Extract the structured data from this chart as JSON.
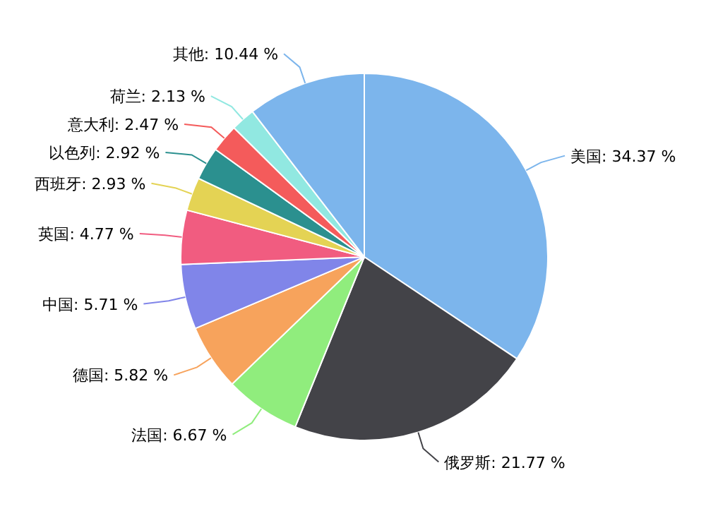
{
  "chart_data": {
    "type": "pie",
    "categories": [
      "美国",
      "俄罗斯",
      "法国",
      "德国",
      "中国",
      "英国",
      "西班牙",
      "以色列",
      "意大利",
      "荷兰",
      "其他"
    ],
    "values": [
      34.37,
      21.77,
      6.67,
      5.82,
      5.71,
      4.77,
      2.93,
      2.92,
      2.47,
      2.13,
      10.44
    ],
    "value_labels": [
      "34.37 %",
      "21.77 %",
      "6.67 %",
      "5.82 %",
      "5.71 %",
      "4.77 %",
      "2.93 %",
      "2.92 %",
      "2.47 %",
      "2.13 %",
      "10.44 %"
    ],
    "colors": [
      "#7cb5ec",
      "#434348",
      "#90ed7d",
      "#f7a35c",
      "#8085e9",
      "#f15c80",
      "#e4d354",
      "#2b908f",
      "#f45b5b",
      "#91e8e1",
      "#7cb5ec"
    ]
  }
}
